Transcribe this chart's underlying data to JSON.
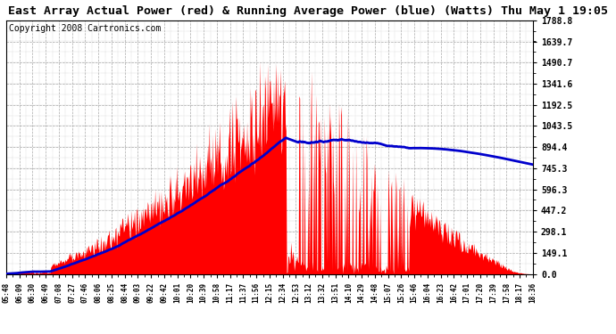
{
  "title": "East Array Actual Power (red) & Running Average Power (blue) (Watts) Thu May 1 19:05",
  "copyright": "Copyright 2008 Cartronics.com",
  "ymax": 1788.8,
  "yticks": [
    0.0,
    149.1,
    298.1,
    447.2,
    596.3,
    745.3,
    894.4,
    1043.5,
    1192.5,
    1341.6,
    1490.7,
    1639.7,
    1788.8
  ],
  "xtick_labels": [
    "05:48",
    "06:09",
    "06:30",
    "06:49",
    "07:08",
    "07:27",
    "07:46",
    "08:06",
    "08:25",
    "08:44",
    "09:03",
    "09:22",
    "09:42",
    "10:01",
    "10:20",
    "10:39",
    "10:58",
    "11:17",
    "11:37",
    "11:56",
    "12:15",
    "12:34",
    "12:53",
    "13:12",
    "13:32",
    "13:51",
    "14:10",
    "14:29",
    "14:48",
    "15:07",
    "15:26",
    "15:46",
    "16:04",
    "16:23",
    "16:42",
    "17:01",
    "17:20",
    "17:39",
    "17:58",
    "18:17",
    "18:36"
  ],
  "bg_color": "#ffffff",
  "plot_bg_color": "#ffffff",
  "grid_color": "#aaaaaa",
  "bar_color": "#ff0000",
  "avg_color": "#0000cc",
  "title_fontsize": 9.5,
  "copyright_fontsize": 7
}
